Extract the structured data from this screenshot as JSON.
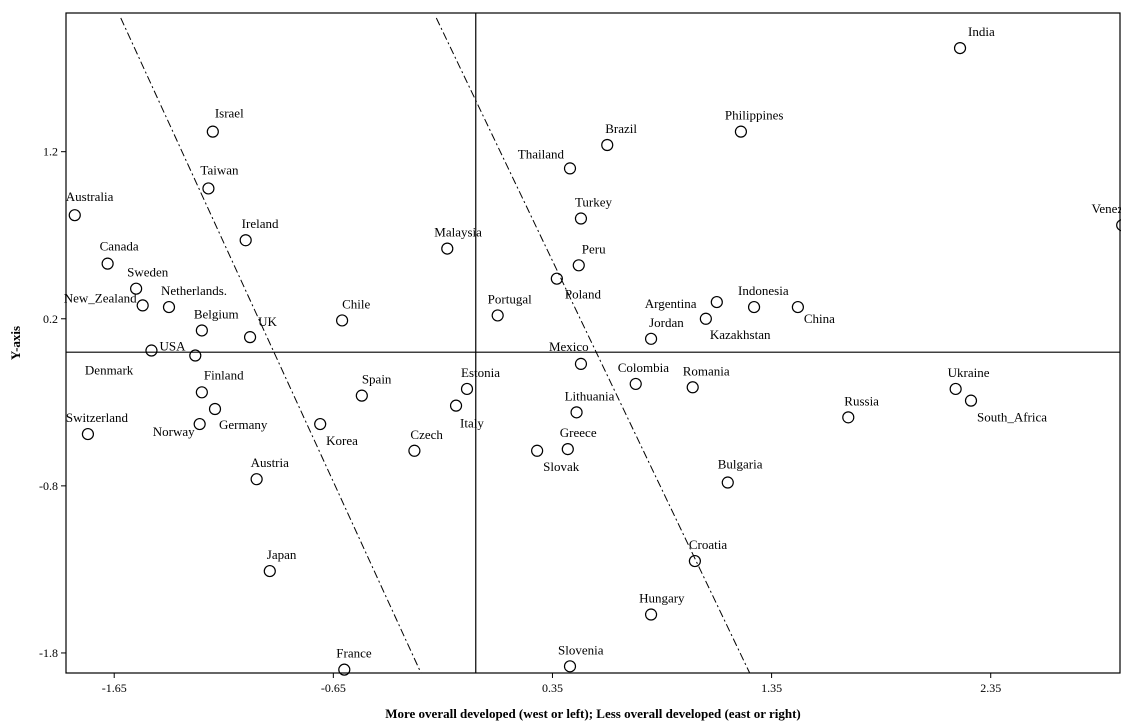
{
  "chart_data": {
    "type": "scatter",
    "title": "",
    "xlabel": "More overall developed (west or left); Less overall developed (east or right)",
    "ylabel": "Y-axis",
    "xlim": [
      -1.87,
      2.94
    ],
    "ylim": [
      -1.92,
      2.03
    ],
    "xticks": [
      {
        "value": -1.65,
        "label": "-1.65"
      },
      {
        "value": -0.65,
        "label": "-0.65"
      },
      {
        "value": 0.35,
        "label": "0.35"
      },
      {
        "value": 1.35,
        "label": "1.35"
      },
      {
        "value": 2.35,
        "label": "2.35"
      }
    ],
    "yticks": [
      {
        "value": 1.2,
        "label": "1.2"
      },
      {
        "value": 0.2,
        "label": "0.2"
      },
      {
        "value": -0.8,
        "label": "-0.8"
      },
      {
        "value": -1.8,
        "label": "-1.8"
      }
    ],
    "reference_lines": {
      "x": 0.0,
      "y": 0.0
    },
    "dash_dot_lines": [
      {
        "from": [
          -1.62,
          2.0
        ],
        "to": [
          -0.25,
          -1.92
        ]
      },
      {
        "from": [
          -0.18,
          2.0
        ],
        "to": [
          1.25,
          -1.92
        ]
      }
    ],
    "grid": false,
    "marker": "open-circle",
    "points": [
      {
        "name": "India",
        "x": 2.21,
        "y": 1.82
      },
      {
        "name": "Philippines",
        "x": 1.21,
        "y": 1.32
      },
      {
        "name": "Brazil",
        "x": 0.6,
        "y": 1.24
      },
      {
        "name": "Thailand",
        "x": 0.43,
        "y": 1.1
      },
      {
        "name": "Israel",
        "x": -1.2,
        "y": 1.32
      },
      {
        "name": "Taiwan",
        "x": -1.22,
        "y": 0.98
      },
      {
        "name": "Australia",
        "x": -1.83,
        "y": 0.82
      },
      {
        "name": "Venezuela",
        "x": 2.95,
        "y": 0.76
      },
      {
        "name": "Turkey",
        "x": 0.48,
        "y": 0.8
      },
      {
        "name": "Ireland",
        "x": -1.05,
        "y": 0.67
      },
      {
        "name": "Malaysia",
        "x": -0.13,
        "y": 0.62
      },
      {
        "name": "Canada",
        "x": -1.68,
        "y": 0.53
      },
      {
        "name": "Peru",
        "x": 0.47,
        "y": 0.52
      },
      {
        "name": "Sweden",
        "x": -1.55,
        "y": 0.38
      },
      {
        "name": "Poland",
        "x": 0.37,
        "y": 0.44
      },
      {
        "name": "Netherlands.",
        "x": -1.4,
        "y": 0.27
      },
      {
        "name": "New_Zealand",
        "x": -1.52,
        "y": 0.28
      },
      {
        "name": "Argentina",
        "x": 1.1,
        "y": 0.3
      },
      {
        "name": "Indonesia",
        "x": 1.27,
        "y": 0.27
      },
      {
        "name": "China",
        "x": 1.47,
        "y": 0.27
      },
      {
        "name": "Kazakhstan",
        "x": 1.05,
        "y": 0.2
      },
      {
        "name": "Portugal",
        "x": 0.1,
        "y": 0.22
      },
      {
        "name": "Chile",
        "x": -0.61,
        "y": 0.19
      },
      {
        "name": "Belgium",
        "x": -1.25,
        "y": 0.13
      },
      {
        "name": "UK",
        "x": -1.03,
        "y": 0.09
      },
      {
        "name": "Jordan",
        "x": 0.8,
        "y": 0.08
      },
      {
        "name": "USA",
        "x": -1.48,
        "y": 0.01
      },
      {
        "name": "Denmark",
        "x": -1.28,
        "y": -0.02
      },
      {
        "name": "Mexico",
        "x": 0.48,
        "y": -0.07
      },
      {
        "name": "Colombia",
        "x": 0.73,
        "y": -0.19
      },
      {
        "name": "Romania",
        "x": 0.99,
        "y": -0.21
      },
      {
        "name": "Ukraine",
        "x": 2.19,
        "y": -0.22
      },
      {
        "name": "South_Africa",
        "x": 2.26,
        "y": -0.29
      },
      {
        "name": "Estonia",
        "x": -0.04,
        "y": -0.22
      },
      {
        "name": "Spain",
        "x": -0.52,
        "y": -0.26
      },
      {
        "name": "Finland",
        "x": -1.25,
        "y": -0.24
      },
      {
        "name": "Italy",
        "x": -0.09,
        "y": -0.32
      },
      {
        "name": "Germany",
        "x": -1.19,
        "y": -0.34
      },
      {
        "name": "Lithuania",
        "x": 0.46,
        "y": -0.36
      },
      {
        "name": "Russia",
        "x": 1.7,
        "y": -0.39
      },
      {
        "name": "Switzerland",
        "x": -1.77,
        "y": -0.49
      },
      {
        "name": "Norway",
        "x": -1.26,
        "y": -0.43
      },
      {
        "name": "Korea",
        "x": -0.71,
        "y": -0.43
      },
      {
        "name": "Czech",
        "x": -0.28,
        "y": -0.59
      },
      {
        "name": "Slovak",
        "x": 0.28,
        "y": -0.59
      },
      {
        "name": "Greece",
        "x": 0.42,
        "y": -0.58
      },
      {
        "name": "Austria",
        "x": -1.0,
        "y": -0.76
      },
      {
        "name": "Bulgaria",
        "x": 1.15,
        "y": -0.78
      },
      {
        "name": "Croatia",
        "x": 1.0,
        "y": -1.25
      },
      {
        "name": "Japan",
        "x": -0.94,
        "y": -1.31
      },
      {
        "name": "Hungary",
        "x": 0.8,
        "y": -1.57
      },
      {
        "name": "France",
        "x": -0.6,
        "y": -1.9
      },
      {
        "name": "Slovenia",
        "x": 0.43,
        "y": -1.88
      }
    ]
  }
}
